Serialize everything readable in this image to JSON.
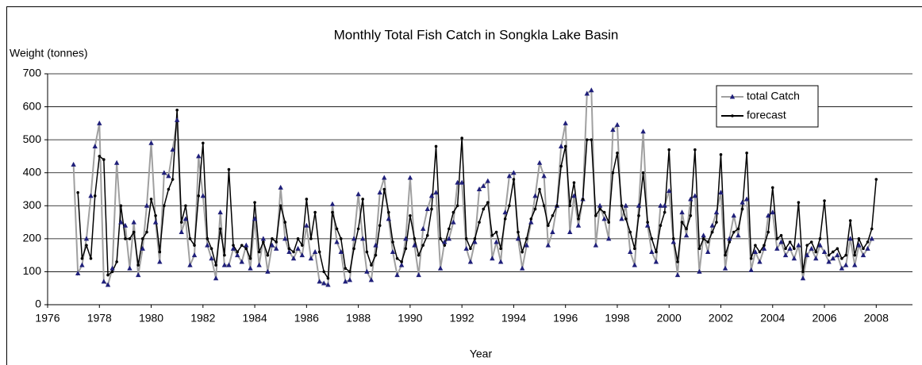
{
  "chart_data": {
    "type": "line",
    "title": "Monthly Total Fish Catch in Songkla Lake Basin",
    "y_label": "Weight (tonnes)",
    "x_label": "Year",
    "xlim": [
      1976,
      2009.4
    ],
    "xticks": [
      1976,
      1978,
      1980,
      1982,
      1984,
      1986,
      1988,
      1990,
      1992,
      1994,
      1996,
      1998,
      2000,
      2002,
      2004,
      2006,
      2008
    ],
    "ylim": [
      0,
      700
    ],
    "yticks": [
      0,
      100,
      200,
      300,
      400,
      500,
      600,
      700
    ],
    "grid": true,
    "legend": "upper right",
    "x": [
      1977,
      1977.17,
      1977.33,
      1977.5,
      1977.67,
      1977.83,
      1978,
      1978.17,
      1978.33,
      1978.5,
      1978.67,
      1978.83,
      1979,
      1979.17,
      1979.33,
      1979.5,
      1979.67,
      1979.83,
      1980,
      1980.17,
      1980.33,
      1980.5,
      1980.67,
      1980.83,
      1981,
      1981.17,
      1981.33,
      1981.5,
      1981.67,
      1981.83,
      1982,
      1982.17,
      1982.33,
      1982.5,
      1982.67,
      1982.83,
      1983,
      1983.17,
      1983.33,
      1983.5,
      1983.67,
      1983.83,
      1984,
      1984.17,
      1984.33,
      1984.5,
      1984.67,
      1984.83,
      1985,
      1985.17,
      1985.33,
      1985.5,
      1985.67,
      1985.83,
      1986,
      1986.17,
      1986.33,
      1986.5,
      1986.67,
      1986.83,
      1987,
      1987.17,
      1987.33,
      1987.5,
      1987.67,
      1987.83,
      1988,
      1988.17,
      1988.33,
      1988.5,
      1988.67,
      1988.83,
      1989,
      1989.17,
      1989.33,
      1989.5,
      1989.67,
      1989.83,
      1990,
      1990.17,
      1990.33,
      1990.5,
      1990.67,
      1990.83,
      1991,
      1991.17,
      1991.33,
      1991.5,
      1991.67,
      1991.83,
      1992,
      1992.17,
      1992.33,
      1992.5,
      1992.67,
      1992.83,
      1993,
      1993.17,
      1993.33,
      1993.5,
      1993.67,
      1993.83,
      1994,
      1994.17,
      1994.33,
      1994.5,
      1994.67,
      1994.83,
      1995,
      1995.17,
      1995.33,
      1995.5,
      1995.67,
      1995.83,
      1996,
      1996.17,
      1996.33,
      1996.5,
      1996.67,
      1996.83,
      1997,
      1997.17,
      1997.33,
      1997.5,
      1997.67,
      1997.83,
      1998,
      1998.17,
      1998.33,
      1998.5,
      1998.67,
      1998.83,
      1999,
      1999.17,
      1999.33,
      1999.5,
      1999.67,
      1999.83,
      2000,
      2000.17,
      2000.33,
      2000.5,
      2000.67,
      2000.83,
      2001,
      2001.17,
      2001.33,
      2001.5,
      2001.67,
      2001.83,
      2002,
      2002.17,
      2002.33,
      2002.5,
      2002.67,
      2002.83,
      2003,
      2003.17,
      2003.33,
      2003.5,
      2003.67,
      2003.83,
      2004,
      2004.17,
      2004.33,
      2004.5,
      2004.67,
      2004.83,
      2005,
      2005.17,
      2005.33,
      2005.5,
      2005.67,
      2005.83,
      2006,
      2006.17,
      2006.33,
      2006.5,
      2006.67,
      2006.83,
      2007,
      2007.17,
      2007.33,
      2007.5,
      2007.67,
      2007.83,
      2008
    ],
    "series": [
      {
        "name": "total Catch",
        "color": "#a0a0a0",
        "marker": "triangle",
        "marker_color": "#1f1f7a",
        "values": [
          425,
          95,
          120,
          200,
          330,
          480,
          550,
          70,
          60,
          110,
          430,
          250,
          240,
          110,
          250,
          90,
          170,
          300,
          490,
          250,
          130,
          400,
          390,
          470,
          560,
          220,
          260,
          120,
          150,
          450,
          330,
          180,
          140,
          80,
          280,
          120,
          120,
          170,
          150,
          130,
          180,
          110,
          260,
          120,
          200,
          100,
          180,
          170,
          355,
          200,
          160,
          140,
          170,
          150,
          240,
          140,
          160,
          70,
          65,
          60,
          305,
          190,
          160,
          70,
          75,
          200,
          335,
          200,
          100,
          75,
          180,
          340,
          385,
          260,
          160,
          90,
          120,
          200,
          385,
          180,
          90,
          230,
          290,
          330,
          340,
          110,
          190,
          200,
          250,
          370,
          370,
          170,
          130,
          190,
          350,
          360,
          375,
          140,
          190,
          130,
          280,
          390,
          400,
          200,
          110,
          180,
          250,
          330,
          430,
          390,
          180,
          220,
          300,
          480,
          550,
          220,
          330,
          240,
          320,
          640,
          650,
          180,
          300,
          260,
          200,
          530,
          545,
          260,
          300,
          160,
          120,
          300,
          525,
          240,
          160,
          130,
          300,
          300,
          345,
          190,
          90,
          280,
          210,
          320,
          330,
          100,
          210,
          160,
          240,
          280,
          340,
          110,
          200,
          270,
          210,
          310,
          320,
          105,
          160,
          130,
          170,
          270,
          280,
          170,
          190,
          150,
          170,
          140,
          180,
          80,
          150,
          170,
          140,
          180,
          160,
          130,
          140,
          150,
          110,
          120,
          200,
          120,
          180,
          150,
          170,
          200,
          null
        ]
      },
      {
        "name": "forecast",
        "color": "#000000",
        "marker": "circle",
        "marker_color": "#000000",
        "values": [
          null,
          340,
          140,
          180,
          140,
          330,
          450,
          440,
          90,
          100,
          130,
          300,
          200,
          200,
          220,
          120,
          200,
          220,
          320,
          270,
          160,
          300,
          350,
          380,
          590,
          250,
          300,
          200,
          180,
          330,
          490,
          200,
          170,
          120,
          230,
          150,
          410,
          180,
          160,
          180,
          170,
          140,
          310,
          160,
          190,
          150,
          200,
          190,
          300,
          250,
          170,
          160,
          200,
          180,
          320,
          200,
          280,
          160,
          100,
          80,
          280,
          230,
          200,
          110,
          100,
          170,
          230,
          320,
          160,
          120,
          150,
          240,
          350,
          280,
          190,
          140,
          130,
          170,
          270,
          200,
          150,
          180,
          210,
          290,
          480,
          200,
          180,
          230,
          280,
          300,
          505,
          200,
          170,
          200,
          250,
          290,
          310,
          210,
          220,
          170,
          260,
          300,
          380,
          220,
          160,
          200,
          260,
          290,
          350,
          300,
          240,
          270,
          300,
          420,
          480,
          300,
          370,
          260,
          320,
          500,
          500,
          270,
          290,
          280,
          250,
          400,
          460,
          300,
          260,
          220,
          170,
          270,
          400,
          250,
          200,
          160,
          240,
          280,
          470,
          200,
          130,
          250,
          230,
          270,
          470,
          170,
          200,
          190,
          220,
          250,
          455,
          150,
          190,
          220,
          230,
          290,
          460,
          140,
          180,
          160,
          180,
          220,
          355,
          200,
          210,
          170,
          190,
          170,
          310,
          100,
          180,
          190,
          160,
          200,
          315,
          150,
          160,
          170,
          140,
          150,
          255,
          150,
          200,
          170,
          190,
          230,
          380
        ]
      }
    ]
  }
}
